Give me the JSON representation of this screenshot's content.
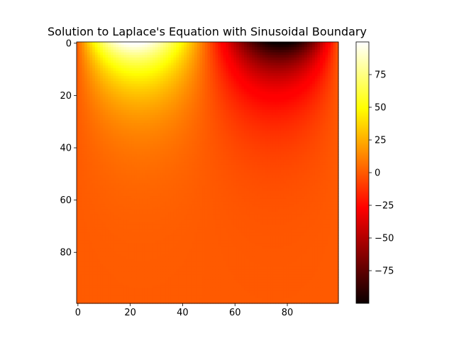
{
  "chart_data": {
    "type": "heatmap",
    "title": "Solution to Laplace's Equation with Sinusoidal Boundary",
    "xlabel": "",
    "ylabel": "",
    "grid_size": 100,
    "xlim": [
      -0.5,
      99.5
    ],
    "ylim": [
      99.5,
      -0.5
    ],
    "x_ticks": [
      0,
      20,
      40,
      60,
      80
    ],
    "y_ticks": [
      0,
      20,
      40,
      60,
      80
    ],
    "top_boundary": "100*sin(2*pi*x/100)",
    "value_range": [
      -100,
      100
    ],
    "colormap": "hot",
    "colormap_stops": [
      "#0b0000",
      "#ff0000",
      "#ffff00",
      "#ffffff"
    ],
    "colorbar": {
      "ticks": [
        75,
        50,
        25,
        0,
        -25,
        -50,
        -75
      ],
      "tick_labels": [
        "75",
        "50",
        "25",
        "0",
        "−25",
        "−50",
        "−75"
      ],
      "range": [
        -100,
        100
      ]
    },
    "grid": false,
    "legend": "none"
  }
}
